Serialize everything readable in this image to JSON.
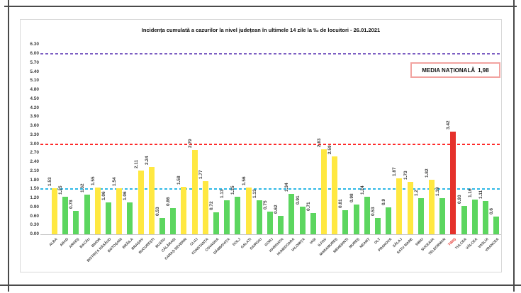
{
  "chart_data": {
    "type": "bar",
    "title": "Incidența cumulată a cazurilor la nivel județean în ultimele 14 zile la ‰ de locuitori - 26.01.2021",
    "date": "26.01.2021",
    "categories": [
      "ALBA",
      "ARAD",
      "ARGEȘ",
      "BACĂU",
      "BIHOR",
      "BISTRIȚA NĂSĂUD",
      "BOTOȘANI",
      "BRĂILA",
      "BRAȘOV",
      "BUCUREȘTI",
      "BUZĂU",
      "CĂLĂRAȘI",
      "CARAȘ-SEVERIN",
      "CLUJ",
      "CONSTANȚA",
      "COVASNA",
      "DÂMBOVIȚA",
      "DOLJ",
      "GALAȚI",
      "GIURGIU",
      "GORJ",
      "HARGHITA",
      "HUNEDOARA",
      "IALOMIȚA",
      "IAȘI",
      "ILFOV",
      "MARAMUREȘ",
      "MEHEDINȚI",
      "MUREȘ",
      "NEAMȚ",
      "OLT",
      "PRAHOVA",
      "SĂLAJ",
      "SATU MARE",
      "SIBIU",
      "SUCEAVA",
      "TELEORMAN",
      "TIMIȘ",
      "TULCEA",
      "VÂLCEA",
      "VASLUI",
      "VRANCEA"
    ],
    "values": [
      "1.53",
      "1.25",
      "0.78",
      "1.32",
      "1.55",
      "1.06",
      "1.54",
      "1.06",
      "2.11",
      "2.24",
      "0.53",
      "0.86",
      "1.58",
      "2.79",
      "1.77",
      "0.72",
      "1.13",
      "1.25",
      "1.56",
      "1.13",
      "0.75",
      "0.62",
      "1.34",
      "0.91",
      "0.71",
      "2.83",
      "2.59",
      "0.81",
      "0.98",
      "1.24",
      "0.53",
      "0.9",
      "1.87",
      "1.73",
      "1.2",
      "1.82",
      "1.19",
      "3.42",
      "0.93",
      "1.16",
      "1.11",
      "0.6"
    ],
    "xlabel": "",
    "ylabel": "",
    "ylim": [
      0,
      6.3
    ],
    "yticks": [
      "0.00",
      "0.30",
      "0.60",
      "0.90",
      "1.20",
      "1.50",
      "1.80",
      "2.10",
      "2.40",
      "2.70",
      "3.00",
      "3.30",
      "3.60",
      "3.90",
      "4.20",
      "4.50",
      "4.80",
      "5.10",
      "5.40",
      "5.70",
      "6.00",
      "6.30"
    ],
    "grid": false,
    "legend": null,
    "thresholds": [
      {
        "value": 1.5,
        "color": "#2eb8e6",
        "style": "dashed",
        "name": "yellow-zone-threshold"
      },
      {
        "value": 3.0,
        "color": "#ff2a2a",
        "style": "dashed",
        "name": "red-zone-threshold"
      },
      {
        "value": 6.0,
        "color": "#7d5fc3",
        "style": "dashed",
        "name": "purple-threshold"
      }
    ],
    "color_rule": {
      "below_1.5": "green",
      "1.5_to_3": "yellow",
      "above_3": "red"
    },
    "colors": {
      "green": "#5cd65f",
      "yellow": "#ffe841",
      "red": "#e5312b"
    },
    "highlighted_category": "TIMIȘ",
    "annotation": {
      "label": "MEDIA NAȚIONALĂ",
      "value": "1,98"
    }
  }
}
